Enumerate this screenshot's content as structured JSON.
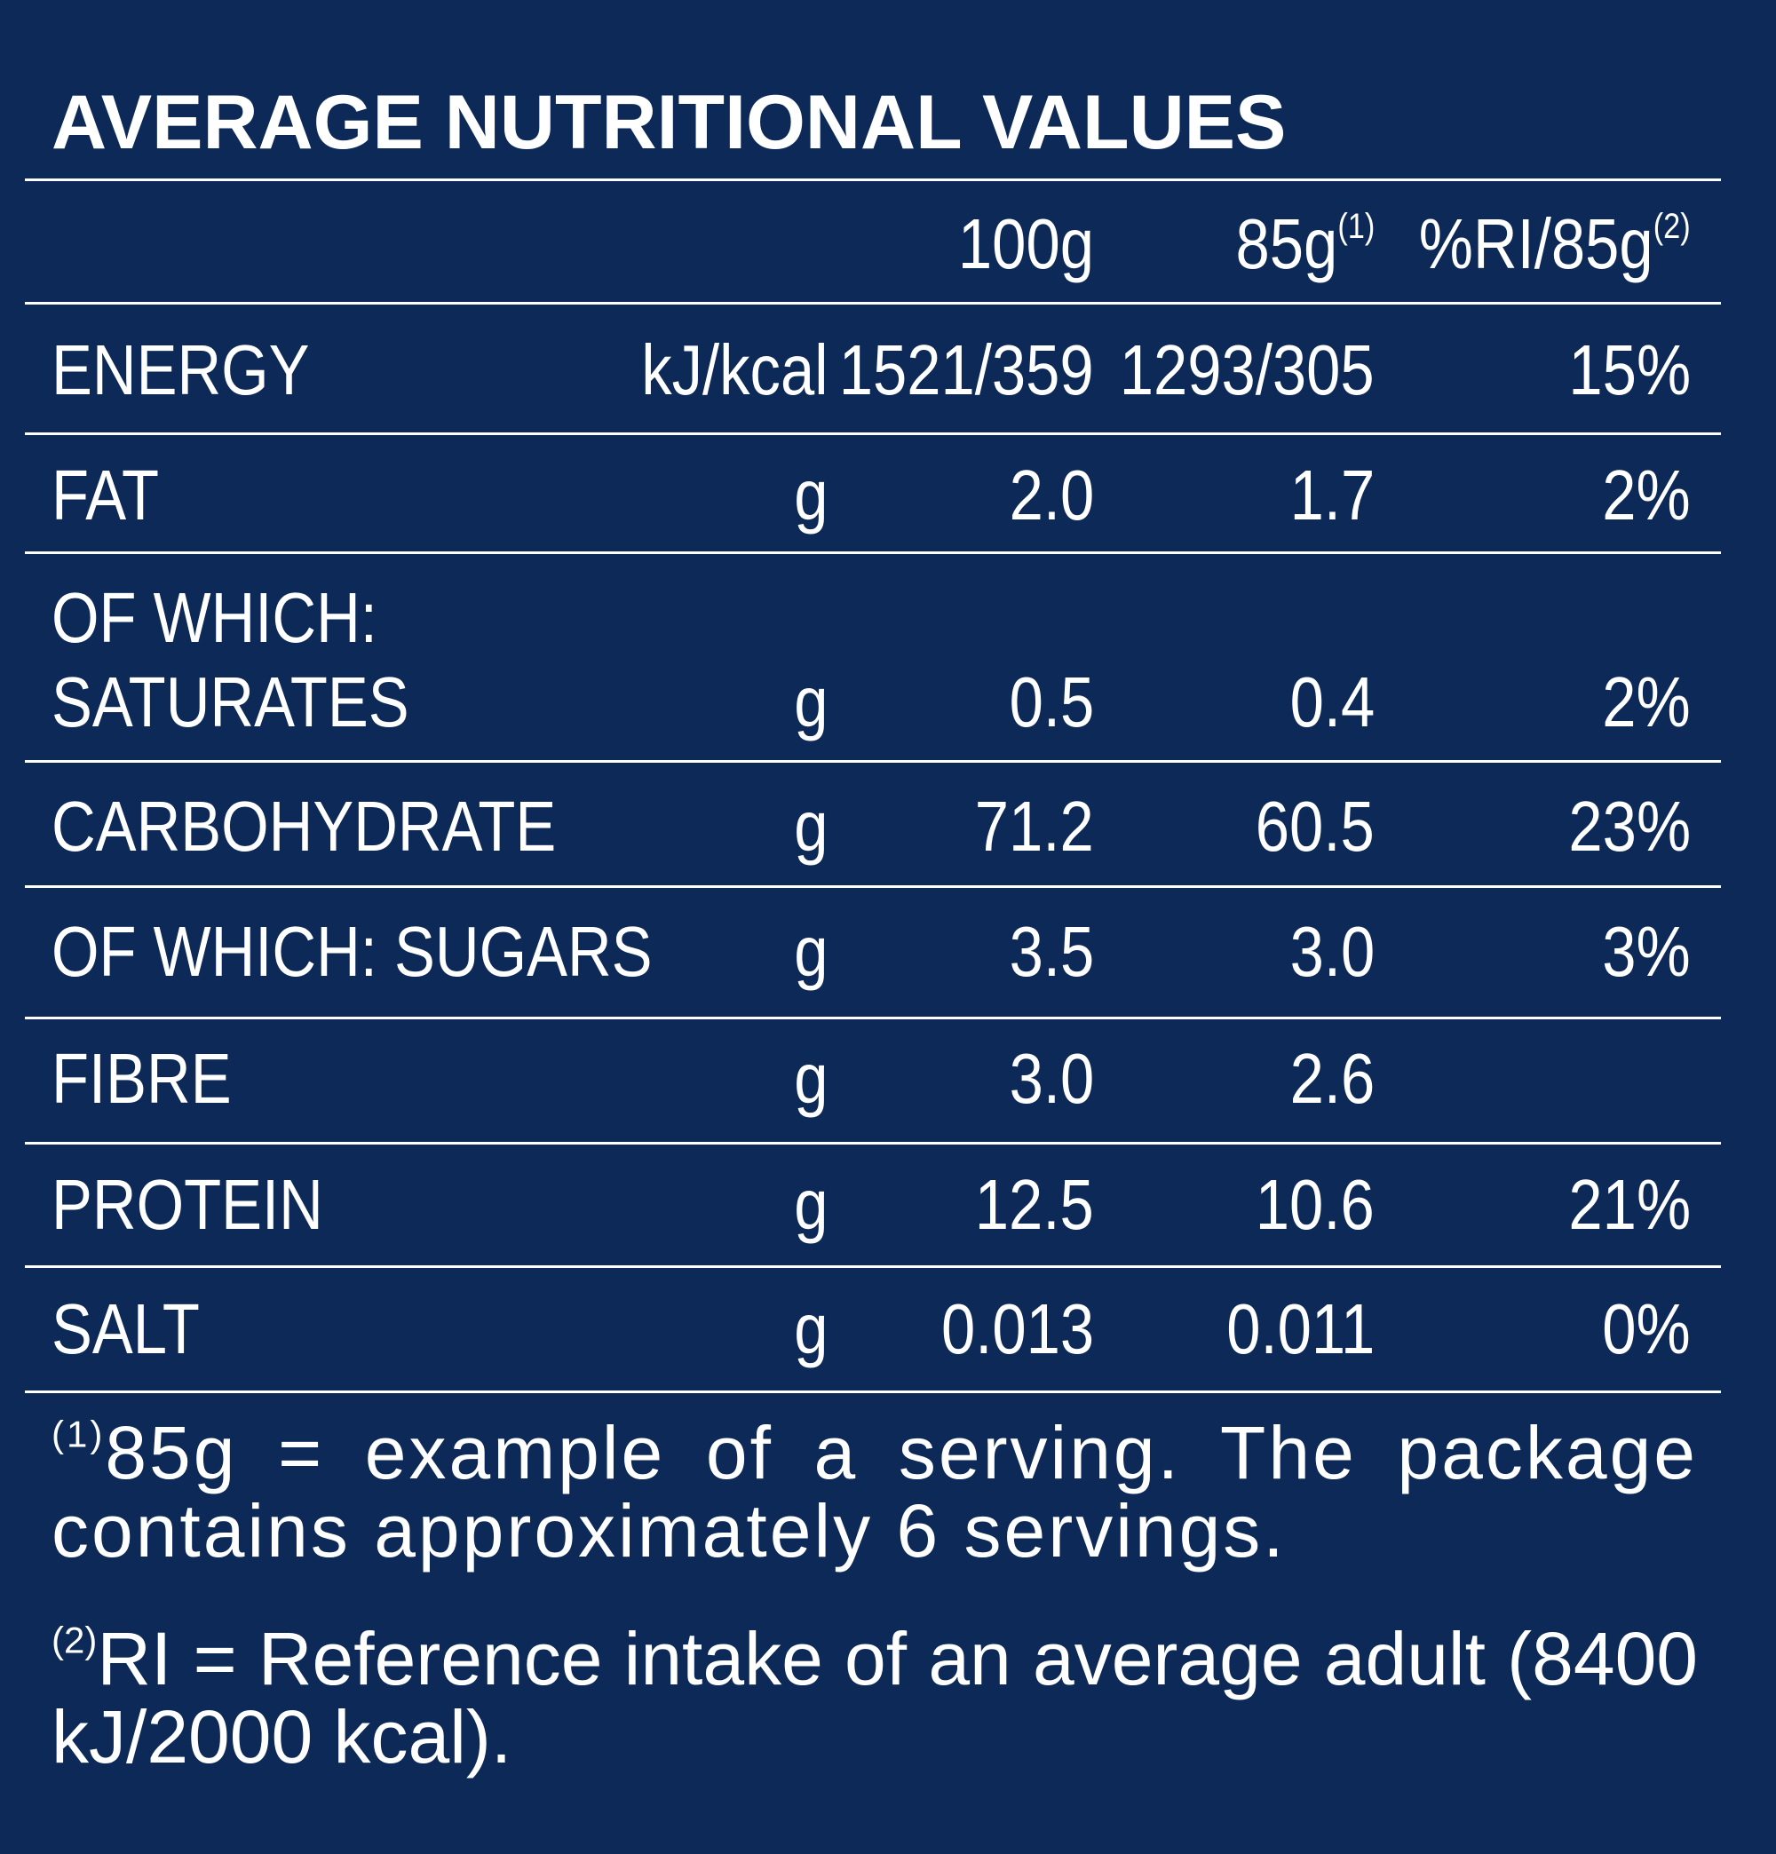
{
  "title": "AVERAGE NUTRITIONAL VALUES",
  "columns": {
    "col1": "100g",
    "col2": "85g",
    "col2_sup": "(1)",
    "col3": "%RI/85g",
    "col3_sup": "(2)"
  },
  "rows": [
    {
      "label": "ENERGY",
      "unit": "kJ/kcal",
      "per100g": "1521/359",
      "per85g": "1293/305",
      "ri": "15%"
    },
    {
      "label": "FAT",
      "unit": "g",
      "per100g": "2.0",
      "per85g": "1.7",
      "ri": "2%"
    },
    {
      "label": "OF WHICH:",
      "label2": "SATURATES",
      "unit": "g",
      "per100g": "0.5",
      "per85g": "0.4",
      "ri": "2%"
    },
    {
      "label": "CARBOHYDRATE",
      "unit": "g",
      "per100g": "71.2",
      "per85g": "60.5",
      "ri": "23%"
    },
    {
      "label": "OF WHICH: SUGARS",
      "unit": "g",
      "per100g": "3.5",
      "per85g": "3.0",
      "ri": "3%"
    },
    {
      "label": "FIBRE",
      "unit": "g",
      "per100g": "3.0",
      "per85g": "2.6",
      "ri": ""
    },
    {
      "label": "PROTEIN",
      "unit": "g",
      "per100g": "12.5",
      "per85g": "10.6",
      "ri": "21%"
    },
    {
      "label": "SALT",
      "unit": "g",
      "per100g": "0.013",
      "per85g": "0.011",
      "ri": "0%"
    }
  ],
  "footnotes": {
    "f1_marker": "(1)",
    "f1_line1": "85g = example of a serving. The package",
    "f1_line2": "contains approximately 6 servings.",
    "f2_marker": "(2)",
    "f2_line1": "RI = Reference intake of an average adult (8400",
    "f2_line2": "kJ/2000 kcal)."
  },
  "colors": {
    "background": "#0c2957",
    "text": "#ffffff"
  }
}
